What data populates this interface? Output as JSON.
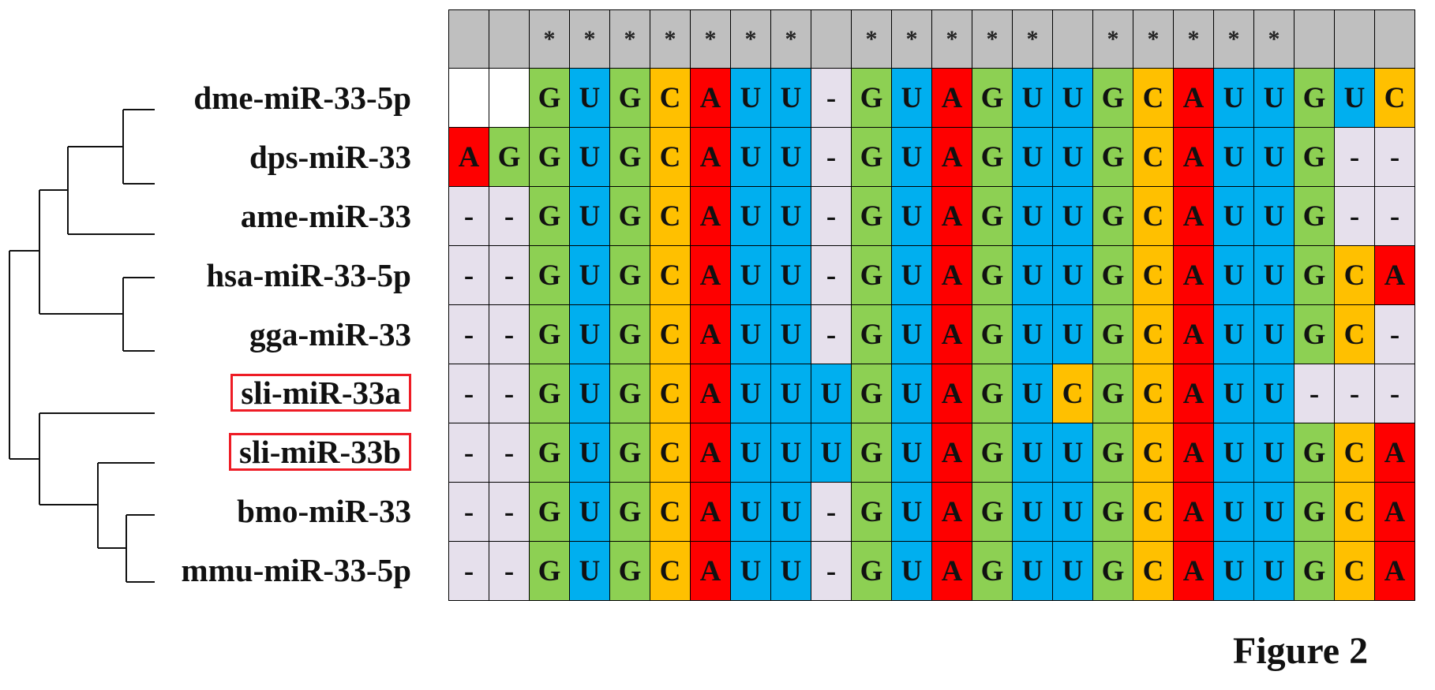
{
  "colors": {
    "G": "#8dd053",
    "U": "#00afef",
    "C": "#ffc000",
    "A": "#fe0000",
    "-": "#e6e0ec",
    "blank": "#ffffff",
    "conservation_bg": "#bfbfbf",
    "highlight_box": "#ee1c25"
  },
  "conservation": [
    "",
    "",
    "*",
    "*",
    "*",
    "*",
    "*",
    "*",
    "*",
    "",
    "*",
    "*",
    "*",
    "*",
    "*",
    "",
    "*",
    "*",
    "*",
    "*",
    "*",
    "",
    "",
    ""
  ],
  "sequences": [
    {
      "name": "dme-miR-33-5p",
      "highlighted": false,
      "cells": [
        "",
        "",
        "G",
        "U",
        "G",
        "C",
        "A",
        "U",
        "U",
        "-",
        "G",
        "U",
        "A",
        "G",
        "U",
        "U",
        "G",
        "C",
        "A",
        "U",
        "U",
        "G",
        "U",
        "C"
      ]
    },
    {
      "name": "dps-miR-33",
      "highlighted": false,
      "cells": [
        "A",
        "G",
        "G",
        "U",
        "G",
        "C",
        "A",
        "U",
        "U",
        "-",
        "G",
        "U",
        "A",
        "G",
        "U",
        "U",
        "G",
        "C",
        "A",
        "U",
        "U",
        "G",
        "-",
        "-"
      ]
    },
    {
      "name": "ame-miR-33",
      "highlighted": false,
      "cells": [
        "-",
        "-",
        "G",
        "U",
        "G",
        "C",
        "A",
        "U",
        "U",
        "-",
        "G",
        "U",
        "A",
        "G",
        "U",
        "U",
        "G",
        "C",
        "A",
        "U",
        "U",
        "G",
        "-",
        "-"
      ]
    },
    {
      "name": "hsa-miR-33-5p",
      "highlighted": false,
      "cells": [
        "-",
        "-",
        "G",
        "U",
        "G",
        "C",
        "A",
        "U",
        "U",
        "-",
        "G",
        "U",
        "A",
        "G",
        "U",
        "U",
        "G",
        "C",
        "A",
        "U",
        "U",
        "G",
        "C",
        "A"
      ]
    },
    {
      "name": "gga-miR-33",
      "highlighted": false,
      "cells": [
        "-",
        "-",
        "G",
        "U",
        "G",
        "C",
        "A",
        "U",
        "U",
        "-",
        "G",
        "U",
        "A",
        "G",
        "U",
        "U",
        "G",
        "C",
        "A",
        "U",
        "U",
        "G",
        "C",
        "-"
      ]
    },
    {
      "name": "sli-miR-33a",
      "highlighted": true,
      "cells": [
        "-",
        "-",
        "G",
        "U",
        "G",
        "C",
        "A",
        "U",
        "U",
        "U",
        "G",
        "U",
        "A",
        "G",
        "U",
        "C",
        "G",
        "C",
        "A",
        "U",
        "U",
        "-",
        "-",
        "-"
      ]
    },
    {
      "name": "sli-miR-33b",
      "highlighted": true,
      "cells": [
        "-",
        "-",
        "G",
        "U",
        "G",
        "C",
        "A",
        "U",
        "U",
        "U",
        "G",
        "U",
        "A",
        "G",
        "U",
        "U",
        "G",
        "C",
        "A",
        "U",
        "U",
        "G",
        "C",
        "A"
      ]
    },
    {
      "name": "bmo-miR-33",
      "highlighted": false,
      "cells": [
        "-",
        "-",
        "G",
        "U",
        "G",
        "C",
        "A",
        "U",
        "U",
        "-",
        "G",
        "U",
        "A",
        "G",
        "U",
        "U",
        "G",
        "C",
        "A",
        "U",
        "U",
        "G",
        "C",
        "A"
      ]
    },
    {
      "name": "mmu-miR-33-5p",
      "highlighted": false,
      "cells": [
        "-",
        "-",
        "G",
        "U",
        "G",
        "C",
        "A",
        "U",
        "U",
        "-",
        "G",
        "U",
        "A",
        "G",
        "U",
        "U",
        "G",
        "C",
        "A",
        "U",
        "U",
        "G",
        "C",
        "A"
      ]
    }
  ],
  "figure_label": "Figure 2"
}
